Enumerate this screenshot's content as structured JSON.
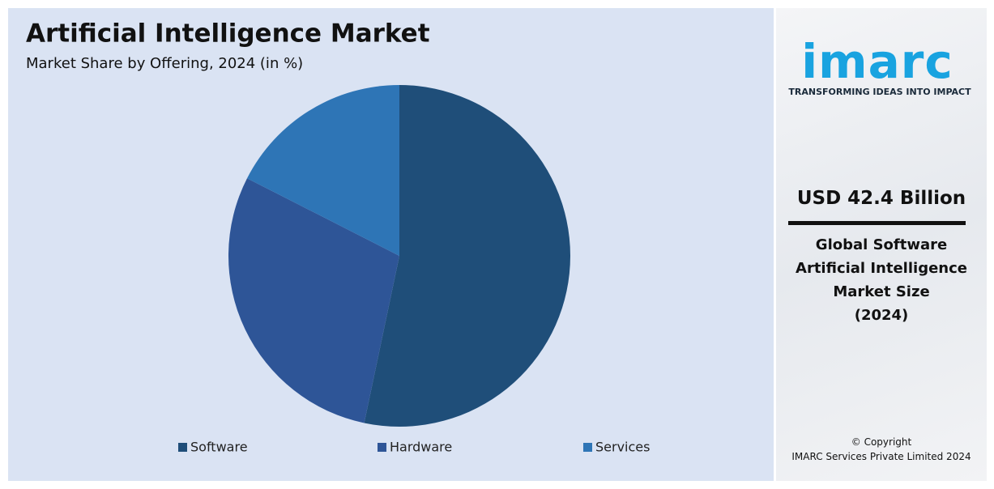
{
  "chart_data": {
    "type": "pie",
    "title": "Artificial Intelligence Market",
    "subtitle": "Market Share by Offering, 2024 (in %)",
    "categories": [
      "Software",
      "Hardware",
      "Services"
    ],
    "values": [
      53.3,
      29.2,
      17.5
    ],
    "colors": [
      "#1f4e79",
      "#2e5597",
      "#2e75b6"
    ],
    "legend": "bottom"
  },
  "sidebar": {
    "logo": "imarc",
    "tagline": "TRANSFORMING IDEAS INTO IMPACT",
    "headline": "USD 42.4 Billion",
    "description": [
      "Global Software",
      "Artificial Intelligence",
      "Market Size",
      "(2024)"
    ],
    "copyright": [
      "© Copyright",
      "IMARC Services Private Limited 2024"
    ]
  }
}
